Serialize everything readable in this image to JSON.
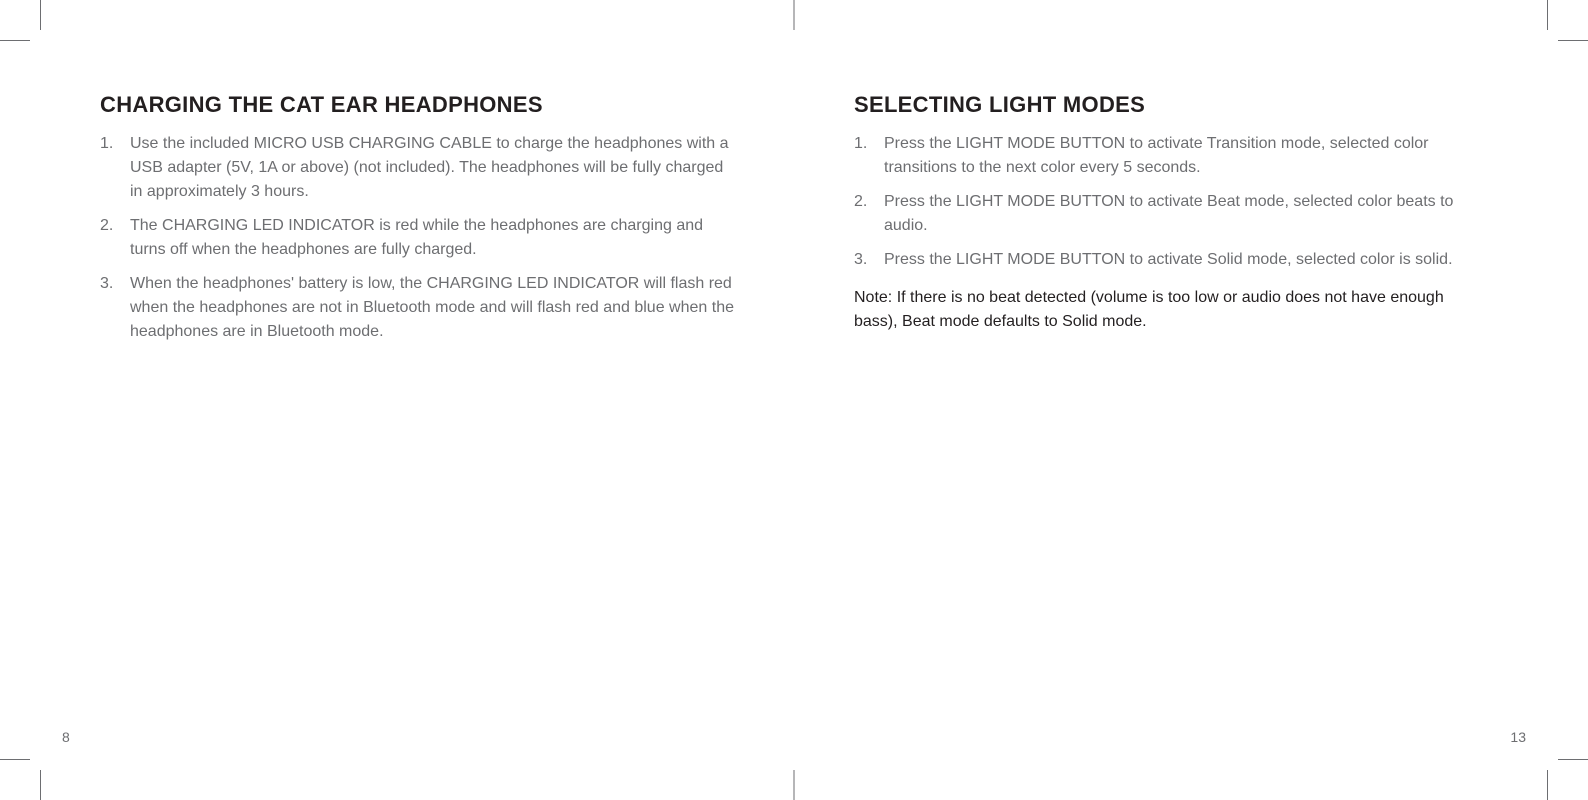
{
  "colors": {
    "text_heading": "#231f20",
    "text_body": "#6d6e71",
    "text_note": "#231f20",
    "background": "#ffffff",
    "crop_mark": "#6d6e71"
  },
  "typography": {
    "heading_fontsize": 22,
    "heading_weight": 600,
    "body_fontsize": 16,
    "body_lineheight": 1.5,
    "font_family": "Helvetica Neue, Helvetica, Arial, sans-serif"
  },
  "left": {
    "heading": "CHARGING THE CAT EAR HEADPHONES",
    "items": [
      "Use the included MICRO USB CHARGING CABLE to charge the headphones with a USB adapter (5V, 1A or above) (not included). The headphones will be fully charged in approximately 3 hours.",
      "The CHARGING LED INDICATOR is red while the headphones are charging and turns off when the headphones are fully charged.",
      "When the headphones' battery is low, the CHARGING LED INDICATOR will flash red when the headphones are not in Bluetooth mode and will flash red and blue when the headphones are in Bluetooth mode."
    ],
    "page_number": "8"
  },
  "right": {
    "heading": "SELECTING LIGHT MODES",
    "items": [
      "Press the LIGHT MODE BUTTON to activate Transition mode, selected color transitions to the next color every 5 seconds.",
      "Press the LIGHT MODE BUTTON to activate Beat mode, selected color beats to audio.",
      "Press the LIGHT MODE BUTTON to activate Solid mode, selected color is solid."
    ],
    "note": "Note: If there is no beat detected (volume is too low or audio does not have enough bass), Beat mode defaults to Solid mode.",
    "page_number": "13"
  }
}
